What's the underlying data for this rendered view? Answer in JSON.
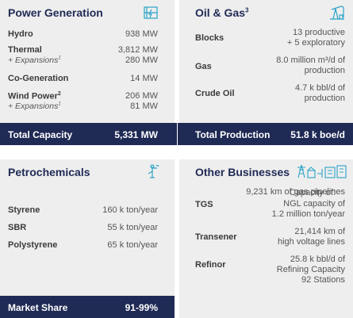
{
  "power": {
    "title": "Power Generation",
    "rows": [
      {
        "label": "Hydro",
        "value": "938 MW"
      },
      {
        "label": "Thermal",
        "value": "3,812 MW"
      },
      {
        "label": "+ Expansions",
        "value": "280 MW"
      },
      {
        "label": "Co-Generation",
        "value": "14 MW"
      },
      {
        "label": "Wind Power",
        "value": "206 MW"
      },
      {
        "label": "+ Expansions",
        "value": "81 MW"
      }
    ],
    "total_label": "Total Capacity",
    "total_value": "5,331 MW"
  },
  "oil_gas": {
    "title": "Oil & Gas",
    "title_sup": "3",
    "rows": [
      {
        "label": "Blocks",
        "value_line1": "13 productive",
        "value_line2": "+ 5 exploratory"
      },
      {
        "label": "Gas",
        "value_line1": "8.0 million m³/d of",
        "value_line2": "production"
      },
      {
        "label": "Crude Oil",
        "value_line1": "4.7 k bbl/d of",
        "value_line2": "production"
      }
    ],
    "total_label": "Total Production",
    "total_value": "51.8 k boe/d"
  },
  "petro": {
    "title": "Petrochemicals",
    "capacity_header": "Capacity of:",
    "rows": [
      {
        "label": "Styrene",
        "value": "160 k ton/year"
      },
      {
        "label": "SBR",
        "value": "55 k ton/year"
      },
      {
        "label": "Polystyrene",
        "value": "65 k ton/year"
      }
    ],
    "market_label": "Market Share",
    "market_value": "91-99%"
  },
  "other": {
    "title": "Other Businesses",
    "tgs_label": "TGS",
    "tgs_line1": "9,231 km of gas pipelines",
    "tgs_line2": "NGL capacity of",
    "tgs_line3": "1.2 million ton/year",
    "transener_label": "Transener",
    "transener_line1": "21,414 km of",
    "transener_line2": "high voltage lines",
    "refinor_label": "Refinor",
    "refinor_line1": "25.8 k bbl/d of",
    "refinor_line2": "Refining Capacity",
    "refinor_line3": "92 Stations"
  },
  "colors": {
    "navy": "#1f2a55",
    "icon_teal": "#29a3c8",
    "panel": "#eeeeee"
  },
  "icons": [
    "power-plant-icon",
    "oil-pump-icon",
    "petrochemical-tower-icon",
    "transmission-towers-icon"
  ]
}
